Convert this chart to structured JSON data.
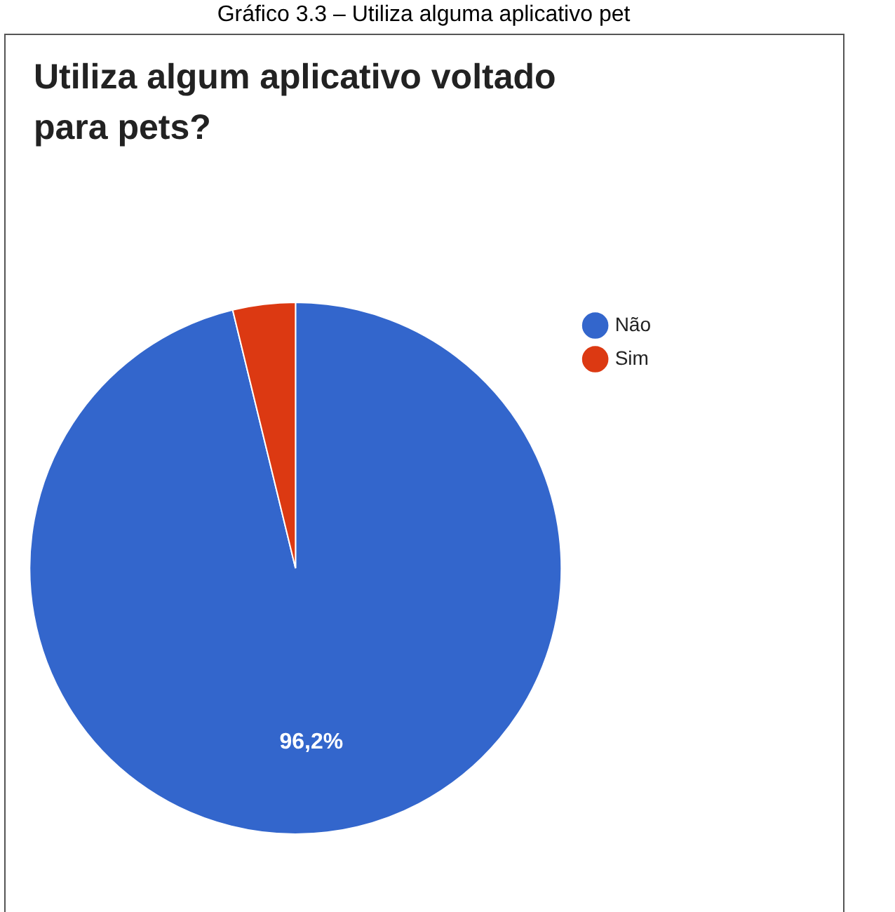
{
  "chart_data": {
    "type": "pie",
    "title": "Utiliza algum aplicativo voltado para pets?",
    "annotations": [
      "Gráfico 3.3 – Utiliza alguma aplicativo pet"
    ],
    "categories": [
      "Não",
      "Sim"
    ],
    "values": [
      96.2,
      3.8
    ],
    "colors": [
      "#3366cc",
      "#dc3912"
    ],
    "value_labels": [
      "96,2%",
      null
    ],
    "legend": "top right"
  }
}
